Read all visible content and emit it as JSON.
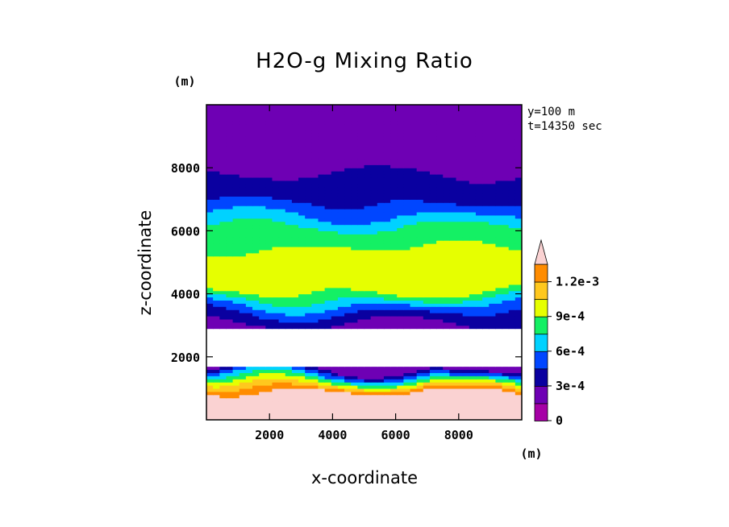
{
  "chart_data": {
    "type": "contour",
    "title": "H2O-g Mixing Ratio",
    "xlabel": "x-coordinate",
    "ylabel": "z-coordinate",
    "x_unit": "(m)",
    "y_unit": "(m)",
    "xlim": [
      0,
      10000
    ],
    "ylim": [
      0,
      10000
    ],
    "xticks": [
      2000,
      4000,
      6000,
      8000
    ],
    "yticks": [
      2000,
      4000,
      6000,
      8000
    ],
    "annotations": [
      "y=100 m",
      "t=14350 sec"
    ],
    "colorbar": {
      "levels": [
        0,
        0.00015,
        0.0003,
        0.00045,
        0.0006,
        0.00075,
        0.0009,
        0.00105,
        0.0012
      ],
      "tick_values": [
        0,
        0.0003,
        0.0006,
        0.0009,
        0.0012
      ],
      "tick_labels": [
        "0",
        "3e-4",
        "6e-4",
        "9e-4",
        "1.2e-3"
      ],
      "colors": [
        "#a600a6",
        "#6e00b4",
        "#0a00a0",
        "#0046ff",
        "#00d2ff",
        "#14f064",
        "#e6ff00",
        "#ffc81e",
        "#ff8c00",
        "#ff2a00",
        "#fad2d2"
      ],
      "extend": "max"
    },
    "profile": [
      {
        "z": 100,
        "value": 0.0013
      },
      {
        "z": 900,
        "value": 0.00125
      },
      {
        "z": 1100,
        "value": 0.00095
      },
      {
        "z": 1300,
        "value": 0.00065
      },
      {
        "z": 1450,
        "value": 0.0004
      },
      {
        "z": 1600,
        "value": 0.0002
      },
      {
        "z": 1650,
        "value": 0.0001
      },
      {
        "z": 2950,
        "value": 0.0001
      },
      {
        "z": 3200,
        "value": 0.0002
      },
      {
        "z": 3500,
        "value": 0.00035
      },
      {
        "z": 3700,
        "value": 0.0005
      },
      {
        "z": 3900,
        "value": 0.00065
      },
      {
        "z": 4100,
        "value": 0.0008
      },
      {
        "z": 4300,
        "value": 0.0009
      },
      {
        "z": 4500,
        "value": 0.0008
      },
      {
        "z": 4700,
        "value": 0.0009
      },
      {
        "z": 5000,
        "value": 0.00085
      },
      {
        "z": 5300,
        "value": 0.0008
      },
      {
        "z": 5600,
        "value": 0.0007
      },
      {
        "z": 6000,
        "value": 0.00065
      },
      {
        "z": 6300,
        "value": 0.00055
      },
      {
        "z": 6600,
        "value": 0.0004
      },
      {
        "z": 6900,
        "value": 0.0003
      },
      {
        "z": 7500,
        "value": 0.0002
      },
      {
        "z": 8000,
        "value": 0.00012
      },
      {
        "z": 9000,
        "value": 5e-05
      }
    ],
    "dry_layer_z": [
      1650,
      2950
    ]
  }
}
